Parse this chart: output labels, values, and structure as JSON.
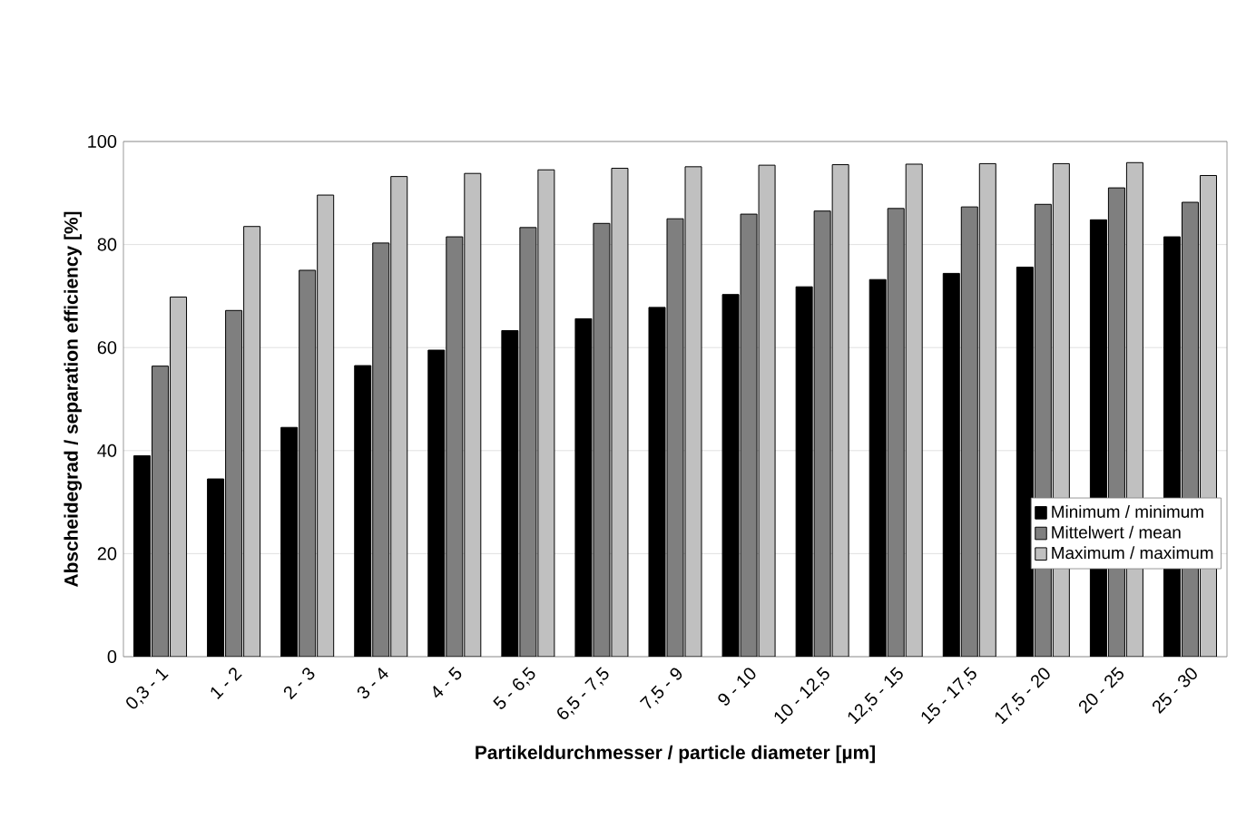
{
  "chart_data": {
    "type": "bar",
    "xlabel": "Partikeldurchmesser / particle diameter [µm]",
    "ylabel": "Abscheidegrad / separation efficiency [%]",
    "categories": [
      "0,3 - 1",
      "1 - 2",
      "2 - 3",
      "3 - 4",
      "4 - 5",
      "5 - 6,5",
      "6,5 - 7,5",
      "7,5 - 9",
      "9 - 10",
      "10 - 12,5",
      "12,5 - 15",
      "15 - 17,5",
      "17,5 - 20",
      "20 - 25",
      "25 - 30"
    ],
    "series": [
      {
        "name": "Minimum / minimum",
        "color": "#000000",
        "values": [
          39,
          34.5,
          44.5,
          56.5,
          59.5,
          63.3,
          65.6,
          67.8,
          70.3,
          71.8,
          73.2,
          74.4,
          75.6,
          84.8,
          81.5
        ]
      },
      {
        "name": "Mittelwert / mean",
        "color": "#7f7f7f",
        "values": [
          56.4,
          67.2,
          75,
          80.3,
          81.5,
          83.3,
          84.1,
          85,
          85.9,
          86.5,
          87,
          87.3,
          87.8,
          91,
          88.2
        ]
      },
      {
        "name": "Maximum / maximum",
        "color": "#c0c0c0",
        "values": [
          69.8,
          83.5,
          89.6,
          93.2,
          93.8,
          94.5,
          94.8,
          95.1,
          95.4,
          95.5,
          95.6,
          95.7,
          95.7,
          95.9,
          93.4
        ]
      }
    ],
    "ylim": [
      0,
      100
    ],
    "yticks": [
      0,
      20,
      40,
      60,
      80,
      100
    ],
    "grid": "y",
    "legend": "bottom right"
  }
}
